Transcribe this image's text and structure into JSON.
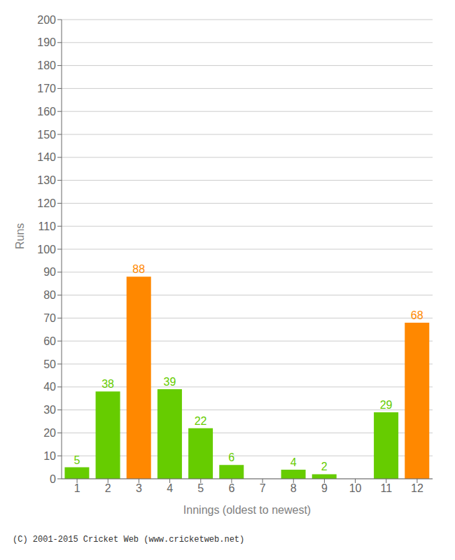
{
  "chart_data": {
    "type": "bar",
    "xlabel": "Innings (oldest to newest)",
    "ylabel": "Runs",
    "categories": [
      1,
      2,
      3,
      4,
      5,
      6,
      7,
      8,
      9,
      10,
      11,
      12
    ],
    "values": [
      5,
      38,
      88,
      39,
      22,
      6,
      0,
      4,
      2,
      0,
      29,
      68
    ],
    "colors": [
      "#66cc00",
      "#66cc00",
      "#ff8800",
      "#66cc00",
      "#66cc00",
      "#66cc00",
      "#66cc00",
      "#66cc00",
      "#66cc00",
      "#66cc00",
      "#66cc00",
      "#ff8800"
    ],
    "ylim": [
      0,
      200
    ],
    "yticks": [
      0,
      10,
      20,
      30,
      40,
      50,
      60,
      70,
      80,
      90,
      100,
      110,
      120,
      130,
      140,
      150,
      160,
      170,
      180,
      190,
      200
    ],
    "grid": true,
    "data_labels": true,
    "footer": "(C) 2001-2015 Cricket Web (www.cricketweb.net)"
  }
}
